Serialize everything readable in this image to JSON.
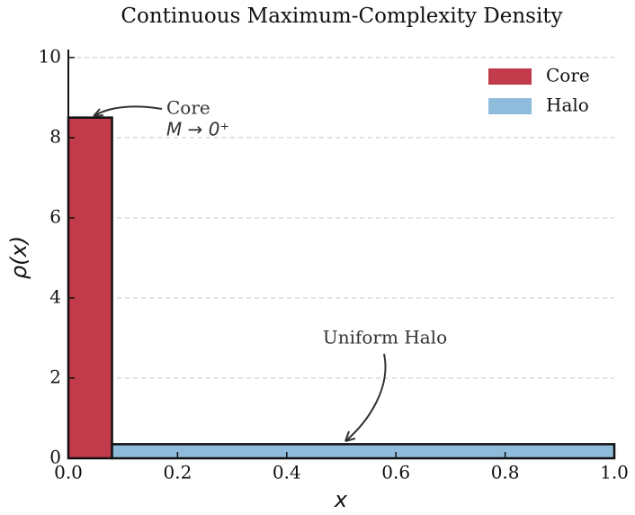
{
  "chart_data": {
    "type": "step-area",
    "title": "Continuous Maximum-Complexity Density",
    "x_label": "x",
    "y_label": "ρ(x)",
    "series": [
      {
        "name": "Core",
        "color": "#c23b4b",
        "x": [
          0,
          0.08
        ],
        "values": [
          8.5,
          8.5
        ]
      },
      {
        "name": "Halo",
        "color": "#8fbcdb",
        "x": [
          0.08,
          1.0
        ],
        "values": [
          0.35,
          0.35
        ]
      }
    ],
    "xlim": [
      0,
      1.0
    ],
    "ylim": [
      0,
      10.2
    ],
    "xticks": [
      {
        "value": 0,
        "label": "0.0"
      },
      0.2,
      0.4,
      0.6,
      0.8,
      {
        "value": 1.0,
        "label": "1.0"
      }
    ],
    "yticks": [
      0,
      2,
      4,
      6,
      8,
      10
    ],
    "grid": "y",
    "legend": "upper right",
    "annotations": [
      "Core",
      "M → 0⁺",
      "Uniform Halo"
    ]
  }
}
